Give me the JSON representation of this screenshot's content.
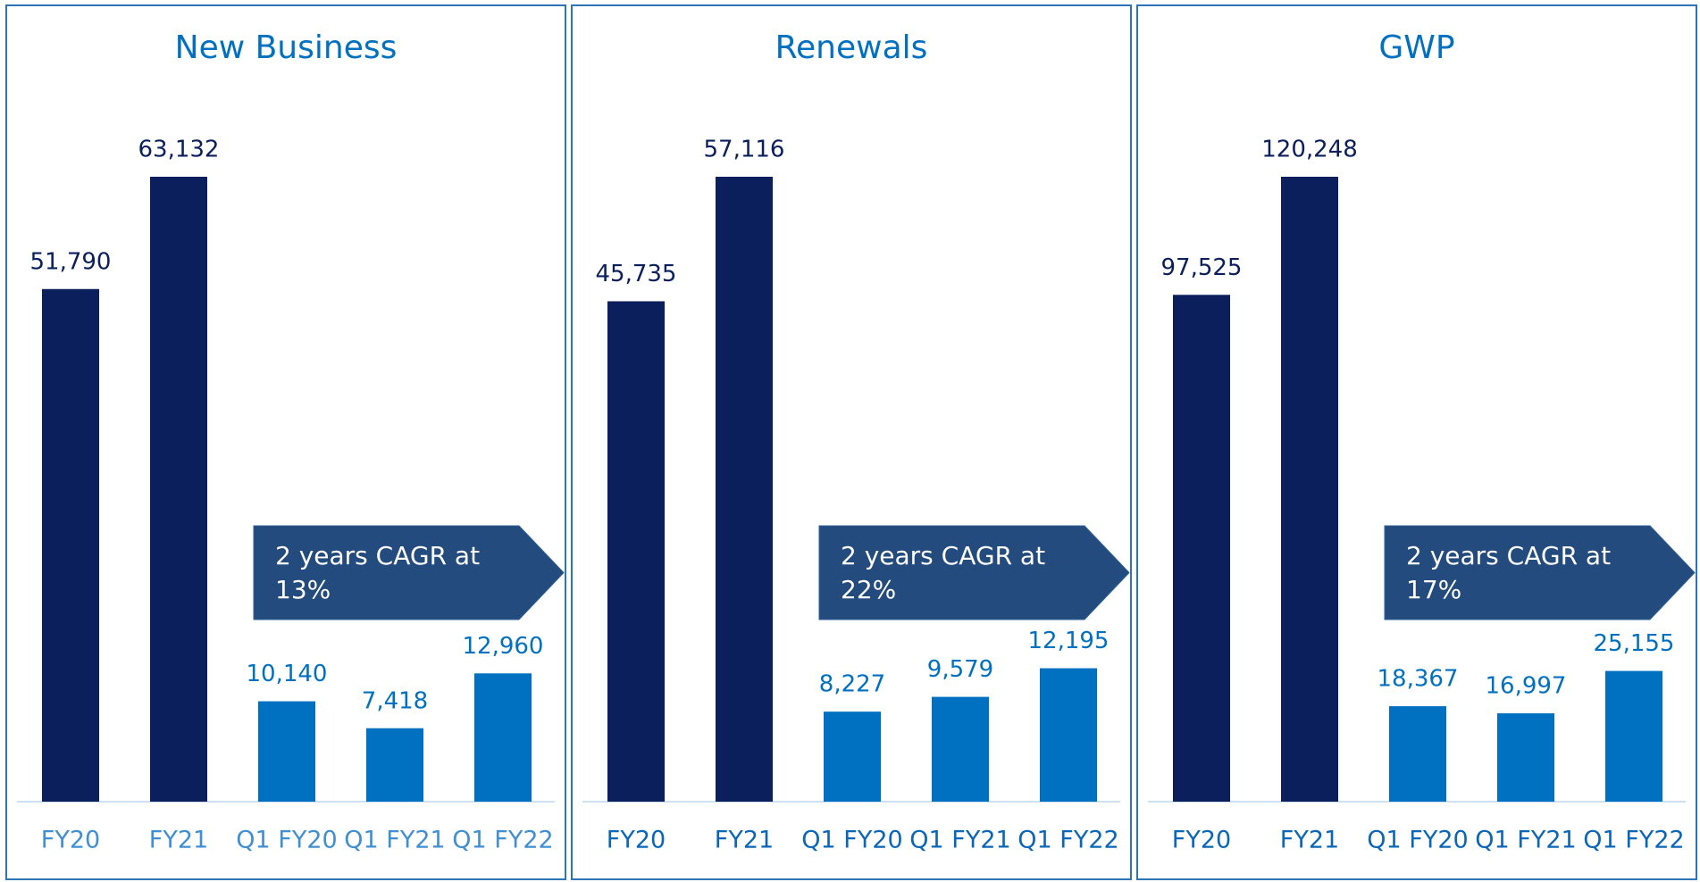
{
  "chart_data": [
    {
      "type": "bar",
      "title": "New Business",
      "categories": [
        "FY20",
        "FY21",
        "Q1 FY20",
        "Q1 FY21",
        "Q1 FY22"
      ],
      "values": [
        51790,
        63132,
        10140,
        7418,
        12960
      ],
      "value_labels": [
        "51,790",
        "63,132",
        "10,140",
        "7,418",
        "12,960"
      ],
      "colors": [
        "#0b1f5c",
        "#0b1f5c",
        "#0070c0",
        "#0070c0",
        "#0070c0"
      ],
      "annotation": "2 years CAGR at 13%"
    },
    {
      "type": "bar",
      "title": "Renewals",
      "categories": [
        "FY20",
        "FY21",
        "Q1 FY20",
        "Q1 FY21",
        "Q1 FY22"
      ],
      "values": [
        45735,
        57116,
        8227,
        9579,
        12195
      ],
      "value_labels": [
        "45,735",
        "57,116",
        "8,227",
        "9,579",
        "12,195"
      ],
      "colors": [
        "#0b1f5c",
        "#0b1f5c",
        "#0070c0",
        "#0070c0",
        "#0070c0"
      ],
      "annotation": "2 years CAGR at 22%"
    },
    {
      "type": "bar",
      "title": "GWP",
      "categories": [
        "FY20",
        "FY21",
        "Q1 FY20",
        "Q1 FY21",
        "Q1 FY22"
      ],
      "values": [
        97525,
        120248,
        18367,
        16997,
        25155
      ],
      "value_labels": [
        "97,525",
        "120,248",
        "18,367",
        "16,997",
        "25,155"
      ],
      "colors": [
        "#0b1f5c",
        "#0b1f5c",
        "#0070c0",
        "#0070c0",
        "#0070c0"
      ],
      "annotation": "2 years CAGR at 17%"
    }
  ]
}
